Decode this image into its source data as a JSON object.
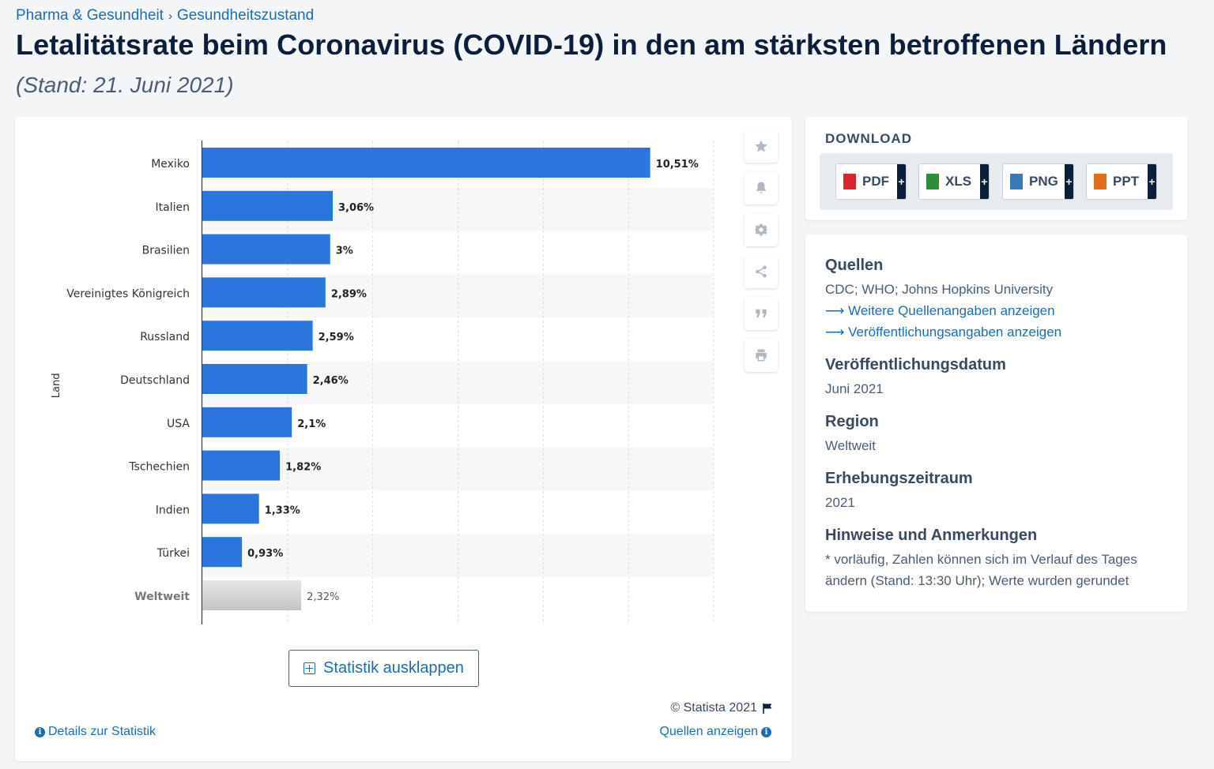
{
  "breadcrumb": {
    "items": [
      "Pharma & Gesundheit",
      "Gesundheitszustand"
    ],
    "separator": "›"
  },
  "page": {
    "title": "Letalitätsrate beim Coronavirus (COVID-19) in den am stärksten betroffenen Ländern",
    "subtitle": "(Stand: 21. Juni 2021)"
  },
  "chart_data": {
    "type": "bar",
    "orientation": "horizontal",
    "categories": [
      "Mexiko",
      "Italien",
      "Brasilien",
      "Vereinigtes Königreich",
      "Russland",
      "Deutschland",
      "USA",
      "Tschechien",
      "Indien",
      "Türkei",
      "Weltweit"
    ],
    "values": [
      10.51,
      3.06,
      3,
      2.89,
      2.59,
      2.46,
      2.1,
      1.82,
      1.33,
      0.93,
      2.32
    ],
    "labels": [
      "10,51%",
      "3,06%",
      "3%",
      "2,89%",
      "2,59%",
      "2,46%",
      "2,1%",
      "1,82%",
      "1,33%",
      "0,93%",
      "2,32%"
    ],
    "highlight": "Weltweit",
    "ylabel": "Land",
    "xlim": [
      0,
      12
    ],
    "grid": true,
    "colors": {
      "bar": "#2a76dd",
      "highlight_top": "#e6e6e6",
      "highlight_bottom": "#c4c4c4",
      "stripe": "#f7f7f7"
    }
  },
  "toolbar": {
    "icons": [
      "star-icon",
      "bell-icon",
      "gear-icon",
      "share-icon",
      "quote-icon",
      "print-icon"
    ]
  },
  "chart_footer": {
    "expand_label": "Statistik ausklappen",
    "copyright": "© Statista 2021",
    "details_label": "Details zur Statistik",
    "sources_label": "Quellen anzeigen"
  },
  "download": {
    "title": "DOWNLOAD",
    "buttons": [
      {
        "label": "PDF",
        "color": "#d9262b"
      },
      {
        "label": "XLS",
        "color": "#2f8c3a"
      },
      {
        "label": "PNG",
        "color": "#3a78b5"
      },
      {
        "label": "PPT",
        "color": "#e07020"
      }
    ],
    "plus": "+"
  },
  "info": {
    "sources_heading": "Quellen",
    "sources_text": "CDC; WHO; Johns Hopkins University",
    "more_sources_link": "⟶ Weitere Quellenangaben anzeigen",
    "publication_link": "⟶ Veröffentlichungsangaben anzeigen",
    "pubdate_heading": "Veröffentlichungsdatum",
    "pubdate_value": "Juni 2021",
    "region_heading": "Region",
    "region_value": "Weltweit",
    "period_heading": "Erhebungszeitraum",
    "period_value": "2021",
    "notes_heading": "Hinweise und Anmerkungen",
    "notes_text": "* vorläufig, Zahlen können sich im Verlauf des Tages ändern (Stand: 13:30 Uhr); Werte wurden gerundet"
  }
}
